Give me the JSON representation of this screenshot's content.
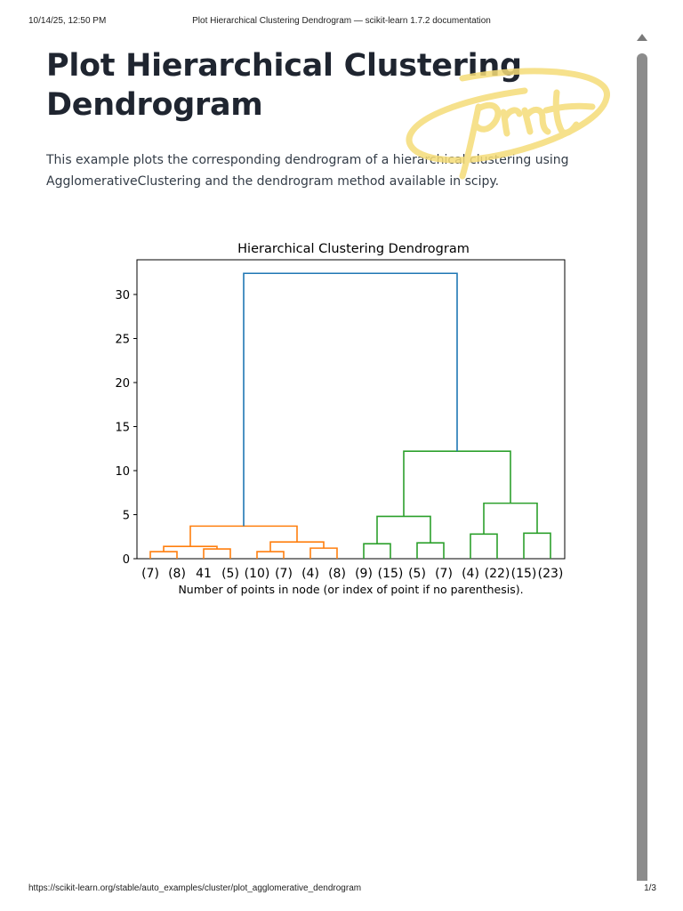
{
  "print_header": {
    "date_time": "10/14/25, 12:50 PM",
    "document_title": "Plot Hierarchical Clustering Dendrogram — scikit-learn 1.7.2 documentation"
  },
  "print_footer": {
    "url": "https://scikit-learn.org/stable/auto_examples/cluster/plot_agglomerative_dendrogram",
    "page_indicator": "1/3"
  },
  "page": {
    "title": "Plot Hierarchical Clustering Dendrogram",
    "intro": "This example plots the corresponding dendrogram of a hierarchical clustering using AgglomerativeClustering and the dendrogram method available in scipy."
  },
  "annotation": {
    "handwritten_text": "print",
    "color": "#f5dc78"
  },
  "colors": {
    "root_link": "#1f77b4",
    "cluster_1": "#ff7f0e",
    "cluster_2": "#2ca02c",
    "axis": "#000000",
    "title_text": "#1f2530",
    "body_text": "#333c47"
  },
  "chart_data": {
    "type": "dendrogram",
    "title": "Hierarchical Clustering Dendrogram",
    "xlabel": "Number of points in node (or index of point if no parenthesis).",
    "ylabel": "",
    "ylim": [
      0,
      34
    ],
    "yticks": [
      0,
      5,
      10,
      15,
      20,
      25,
      30
    ],
    "grid": false,
    "legend": null,
    "leaf_labels": [
      "(7)",
      "(8)",
      "41",
      "(5)",
      "(10)",
      "(7)",
      "(4)",
      "(8)",
      "(9)",
      "(15)",
      "(5)",
      "(7)",
      "(4)",
      "(22)",
      "(15)",
      "(23)"
    ],
    "merges": [
      {
        "left": "(7)",
        "right": "(8)",
        "height": 0.8,
        "color": "orange"
      },
      {
        "left": "41",
        "right": "(5)",
        "height": 1.1,
        "color": "orange"
      },
      {
        "left": "[(7),(8)]",
        "right": "[41,(5)]",
        "height": 1.4,
        "color": "orange"
      },
      {
        "left": "(10)",
        "right": "(7)",
        "height": 0.8,
        "color": "orange"
      },
      {
        "left": "(4)",
        "right": "(8)",
        "height": 1.2,
        "color": "orange"
      },
      {
        "left": "[(10),(7)]",
        "right": "[(4),(8)]",
        "height": 1.9,
        "color": "orange"
      },
      {
        "left": "orange-left",
        "right": "orange-right",
        "height": 3.7,
        "color": "orange"
      },
      {
        "left": "(9)",
        "right": "(15)",
        "height": 1.7,
        "color": "green"
      },
      {
        "left": "(5)",
        "right": "(7)",
        "height": 1.8,
        "color": "green"
      },
      {
        "left": "[(9),(15)]",
        "right": "[(5),(7)]",
        "height": 4.8,
        "color": "green"
      },
      {
        "left": "(4)",
        "right": "(22)",
        "height": 2.8,
        "color": "green"
      },
      {
        "left": "(15)",
        "right": "(23)",
        "height": 2.9,
        "color": "green"
      },
      {
        "left": "[(4),(22)]",
        "right": "[(15),(23)]",
        "height": 6.3,
        "color": "green"
      },
      {
        "left": "green-left",
        "right": "green-right",
        "height": 12.2,
        "color": "green"
      },
      {
        "left": "orange-cluster",
        "right": "green-cluster",
        "height": 32.4,
        "color": "blue"
      }
    ]
  }
}
